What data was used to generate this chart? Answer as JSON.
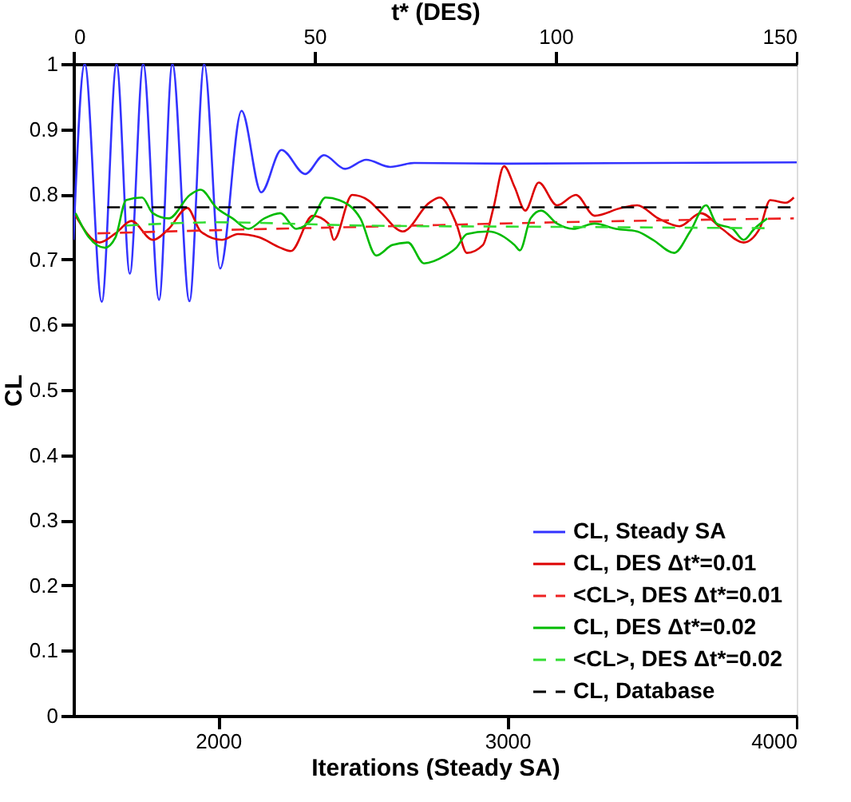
{
  "chart_data": {
    "type": "line",
    "xlabel": "Iterations (Steady SA)",
    "x2label": "t* (DES)",
    "ylabel": "CL",
    "xlim": [
      1500,
      4000
    ],
    "xticks": [
      2000,
      3000,
      4000
    ],
    "x2lim": [
      0,
      150
    ],
    "x2ticks": [
      0,
      50,
      100,
      150
    ],
    "ylim": [
      0,
      1
    ],
    "yticks": [
      0,
      0.1,
      0.2,
      0.3,
      0.4,
      0.5,
      0.6,
      0.7,
      0.8,
      0.9,
      1
    ],
    "grid": false,
    "legend": "bottom right",
    "marker": "none",
    "series": [
      {
        "name": "CL, Steady SA",
        "color": "#3333ff",
        "line_style": "solid",
        "x": [
          1500,
          1539,
          1598,
          1649,
          1695,
          1741,
          1796,
          1842,
          1901,
          1952,
          2007,
          2081,
          2149,
          2219,
          2301,
          2366,
          2439,
          2512,
          2595,
          2678,
          3000,
          4000
        ],
        "values": [
          0.73,
          1,
          0.635,
          1,
          0.678,
          1,
          0.638,
          1,
          0.636,
          1,
          0.686,
          0.928,
          0.803,
          0.868,
          0.831,
          0.86,
          0.839,
          0.853,
          0.842,
          0.848,
          0.847,
          0.849
        ]
      },
      {
        "name": "CL, DES Δt*=0.01",
        "color": "#dd0000",
        "line_style": "solid",
        "axis": "x2",
        "x": [
          0.44,
          5.41,
          8.72,
          12.03,
          16.45,
          19.76,
          23.62,
          26.38,
          30.79,
          34.1,
          38.5,
          42.9,
          45.1,
          49.6,
          52.9,
          54.0,
          57.8,
          61.1,
          63.9,
          68.3,
          73.8,
          76.0,
          79.4,
          81.6,
          84.9,
          87.1,
          89.3,
          91.5,
          93.7,
          96.5,
          100.3,
          104.2,
          108.1,
          113.6,
          116.9,
          121.3,
          125.7,
          130.1,
          134.5,
          139.0,
          142.3,
          144.5,
          147.8,
          149.4
        ],
        "values": [
          0.767,
          0.726,
          0.74,
          0.759,
          0.73,
          0.747,
          0.779,
          0.743,
          0.73,
          0.739,
          0.734,
          0.718,
          0.713,
          0.767,
          0.755,
          0.73,
          0.799,
          0.791,
          0.771,
          0.743,
          0.787,
          0.795,
          0.755,
          0.71,
          0.722,
          0.779,
          0.843,
          0.811,
          0.775,
          0.818,
          0.783,
          0.799,
          0.767,
          0.779,
          0.783,
          0.763,
          0.751,
          0.771,
          0.747,
          0.726,
          0.747,
          0.791,
          0.787,
          0.795
        ]
      },
      {
        "name": "<CL>, DES Δt*=0.01",
        "color": "#ee2222",
        "line_style": "dashed",
        "axis": "x2",
        "x": [
          5,
          30,
          60,
          100,
          149.4
        ],
        "values": [
          0.74,
          0.745,
          0.75,
          0.757,
          0.763
        ]
      },
      {
        "name": "CL, DES Δt*=0.02",
        "color": "#00bb00",
        "line_style": "solid",
        "axis": "x2",
        "x": [
          0.44,
          3.2,
          6.51,
          8.72,
          10.93,
          14.24,
          16.45,
          19.76,
          24.17,
          26.38,
          29.69,
          33.0,
          36.3,
          39.6,
          42.9,
          46.2,
          49.6,
          52.3,
          55.1,
          59.5,
          62.8,
          66.1,
          69.4,
          72.7,
          77.1,
          79.4,
          81.6,
          86.0,
          91.5,
          92.6,
          94.8,
          97.0,
          100.3,
          103.6,
          108.1,
          112.5,
          116.9,
          120.2,
          124.6,
          127.9,
          131.2,
          133.4,
          136.7,
          139.0,
          141.2,
          143.9
        ],
        "values": [
          0.771,
          0.734,
          0.718,
          0.734,
          0.791,
          0.795,
          0.771,
          0.763,
          0.799,
          0.807,
          0.779,
          0.763,
          0.747,
          0.763,
          0.771,
          0.747,
          0.763,
          0.795,
          0.791,
          0.763,
          0.706,
          0.722,
          0.726,
          0.694,
          0.706,
          0.718,
          0.739,
          0.743,
          0.722,
          0.714,
          0.763,
          0.775,
          0.755,
          0.747,
          0.755,
          0.747,
          0.743,
          0.73,
          0.71,
          0.743,
          0.783,
          0.755,
          0.747,
          0.73,
          0.747,
          0.763
        ]
      },
      {
        "name": "<CL>, DES Δt*=0.02",
        "color": "#33dd33",
        "line_style": "dashed",
        "axis": "x2",
        "x": [
          10.9,
          30,
          60,
          100,
          143.9
        ],
        "values": [
          0.752,
          0.757,
          0.752,
          0.75,
          0.748
        ]
      },
      {
        "name": "CL, Database",
        "color": "#000000",
        "line_style": "dashed",
        "axis": "x2",
        "x": [
          7,
          150
        ],
        "values": [
          0.78,
          0.78
        ]
      }
    ]
  }
}
